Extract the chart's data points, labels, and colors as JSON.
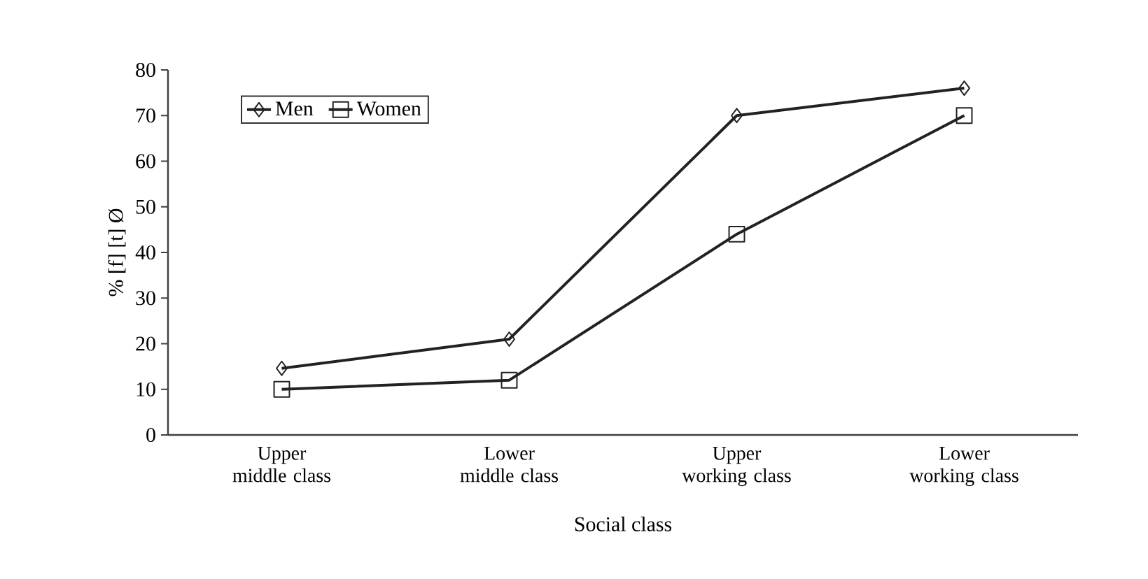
{
  "chart_data": {
    "type": "line",
    "xlabel": "Social class",
    "ylabel": "% [f] [t] Ø",
    "categories": [
      "Upper middle class",
      "Lower middle class",
      "Upper working class",
      "Lower working class"
    ],
    "series": [
      {
        "name": "Men",
        "color": "#222222",
        "marker": "diamond",
        "values": [
          14.6,
          21,
          70,
          76
        ]
      },
      {
        "name": "Women",
        "color": "#222222",
        "marker": "square",
        "values": [
          10,
          12,
          44,
          70
        ]
      }
    ],
    "ylim": [
      0,
      80
    ],
    "yticks": [
      0,
      10,
      20,
      30,
      40,
      50,
      60,
      70,
      80
    ],
    "grid": false,
    "legend": "top left",
    "line_style": "solid"
  }
}
